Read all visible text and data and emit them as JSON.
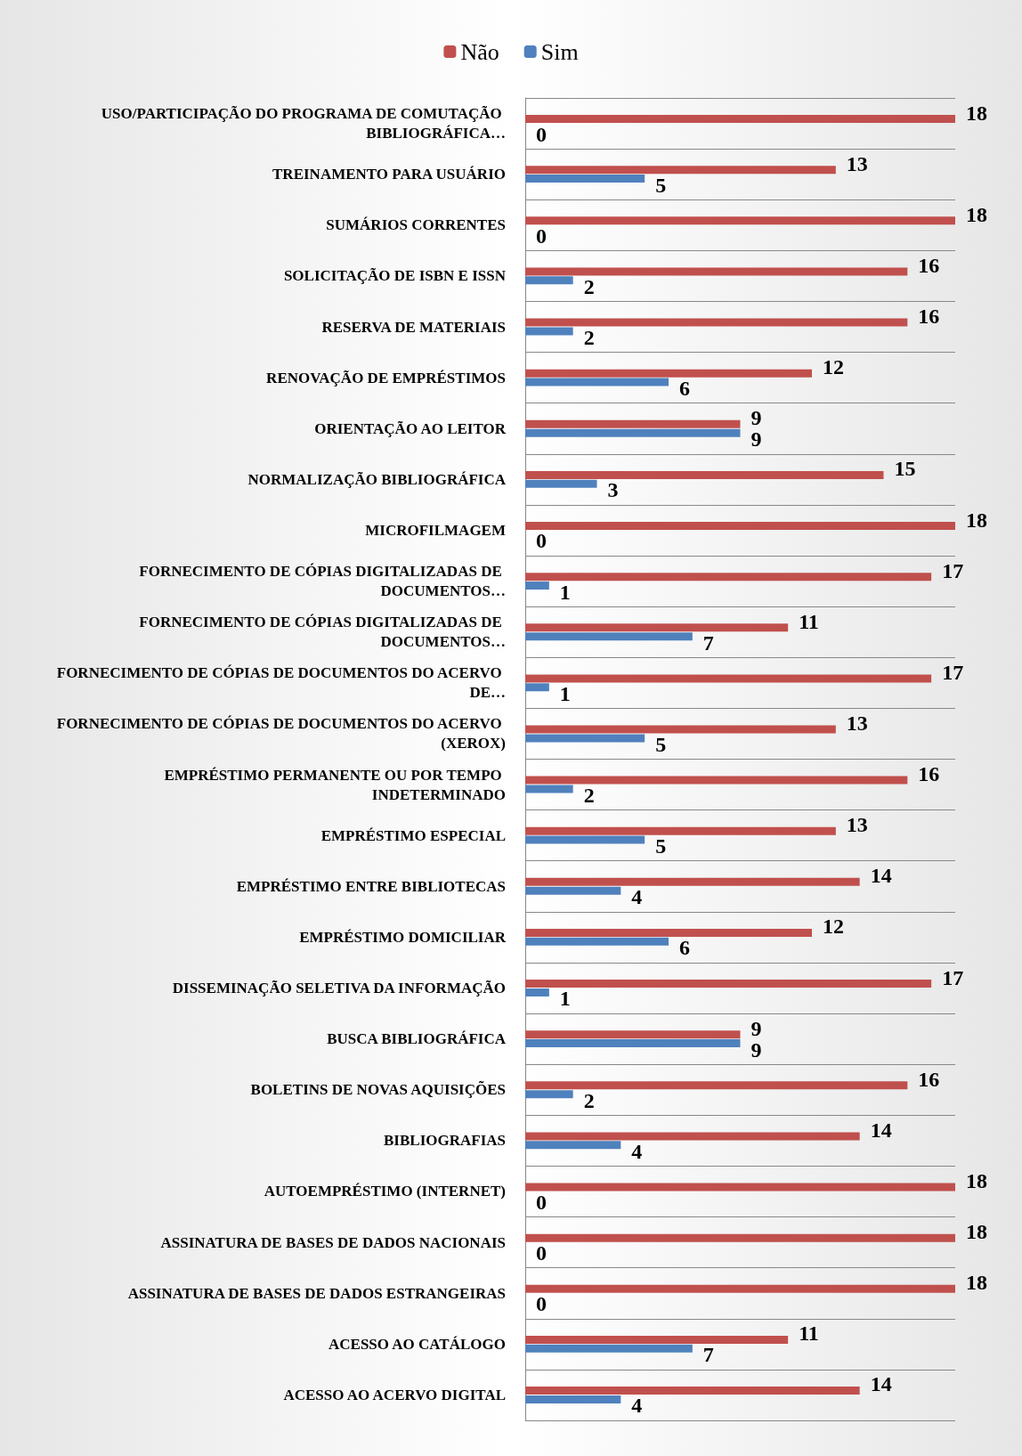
{
  "chart_data": {
    "type": "bar",
    "orientation": "horizontal",
    "xlim": [
      0,
      18
    ],
    "data_labels": true,
    "legend": "top",
    "grid": "y",
    "categories": [
      "USO/PARTICIPAÇÃO DO PROGRAMA DE COMUTAÇÃO BIBLIOGRÁFICA…",
      "TREINAMENTO PARA USUÁRIO",
      "SUMÁRIOS CORRENTES",
      "SOLICITAÇÃO DE ISBN E ISSN",
      "RESERVA DE MATERIAIS",
      "RENOVAÇÃO DE EMPRÉSTIMOS",
      "ORIENTAÇÃO AO LEITOR",
      "NORMALIZAÇÃO BIBLIOGRÁFICA",
      "MICROFILMAGEM",
      "FORNECIMENTO DE CÓPIAS DIGITALIZADAS DE DOCUMENTOS…",
      "FORNECIMENTO DE CÓPIAS DIGITALIZADAS DE DOCUMENTOS…",
      "FORNECIMENTO DE CÓPIAS DE DOCUMENTOS DO ACERVO DE…",
      "FORNECIMENTO DE CÓPIAS DE DOCUMENTOS DO ACERVO (XEROX)",
      "EMPRÉSTIMO PERMANENTE OU POR TEMPO INDETERMINADO",
      "EMPRÉSTIMO ESPECIAL",
      "EMPRÉSTIMO ENTRE BIBLIOTECAS",
      "EMPRÉSTIMO DOMICILIAR",
      "DISSEMINAÇÃO SELETIVA DA INFORMAÇÃO",
      "BUSCA BIBLIOGRÁFICA",
      "BOLETINS DE NOVAS AQUISIÇÕES",
      "BIBLIOGRAFIAS",
      "AUTOEMPRÉSTIMO (INTERNET)",
      "ASSINATURA DE BASES DE DADOS NACIONAIS",
      "ASSINATURA DE BASES DE DADOS ESTRANGEIRAS",
      "ACESSO AO CATÁLOGO",
      "ACESSO AO ACERVO DIGITAL"
    ],
    "series": [
      {
        "name": "Não",
        "color": "#c0504d",
        "values": [
          18,
          13,
          18,
          16,
          16,
          12,
          9,
          15,
          18,
          17,
          11,
          17,
          13,
          16,
          13,
          14,
          12,
          17,
          9,
          16,
          14,
          18,
          18,
          18,
          11,
          14
        ]
      },
      {
        "name": "Sim",
        "color": "#4f81bd",
        "values": [
          0,
          5,
          0,
          2,
          2,
          6,
          9,
          3,
          0,
          1,
          7,
          1,
          5,
          2,
          5,
          4,
          6,
          1,
          9,
          2,
          4,
          0,
          0,
          0,
          7,
          4
        ]
      }
    ]
  }
}
